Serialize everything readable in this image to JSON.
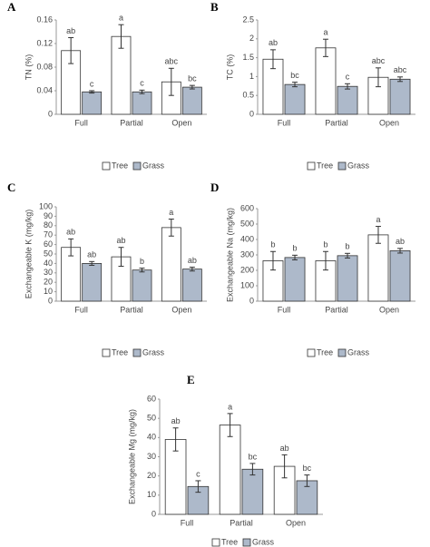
{
  "chart_data": [
    {
      "type": "bar",
      "panel": "A",
      "ylabel": "TN (%)",
      "categories": [
        "Full",
        "Partial",
        "Open"
      ],
      "ylim": [
        0,
        0.16
      ],
      "yticks": [
        0,
        0.04,
        0.08,
        0.12,
        0.16
      ],
      "series": [
        {
          "name": "Tree",
          "color": "#ffffff",
          "values": [
            0.108,
            0.132,
            0.055
          ],
          "errors": [
            0.022,
            0.02,
            0.023
          ],
          "letters": [
            "ab",
            "a",
            "abc"
          ]
        },
        {
          "name": "Grass",
          "color": "#adb9ca",
          "values": [
            0.038,
            0.038,
            0.046
          ],
          "errors": [
            0.002,
            0.003,
            0.003
          ],
          "letters": [
            "c",
            "c",
            "bc"
          ]
        }
      ]
    },
    {
      "type": "bar",
      "panel": "B",
      "ylabel": "TC (%)",
      "categories": [
        "Full",
        "Partial",
        "Open"
      ],
      "ylim": [
        0,
        2.5
      ],
      "yticks": [
        0,
        0.5,
        1,
        1.5,
        2,
        2.5
      ],
      "series": [
        {
          "name": "Tree",
          "color": "#ffffff",
          "values": [
            1.46,
            1.76,
            0.98
          ],
          "errors": [
            0.25,
            0.23,
            0.25
          ],
          "letters": [
            "ab",
            "a",
            "abc"
          ]
        },
        {
          "name": "Grass",
          "color": "#adb9ca",
          "values": [
            0.79,
            0.74,
            0.93
          ],
          "errors": [
            0.06,
            0.07,
            0.06
          ],
          "letters": [
            "bc",
            "c",
            "abc"
          ]
        }
      ]
    },
    {
      "type": "bar",
      "panel": "C",
      "ylabel": "Exchangeable K (mg/kg)",
      "categories": [
        "Full",
        "Partial",
        "Open"
      ],
      "ylim": [
        0,
        100
      ],
      "yticks": [
        0,
        10,
        20,
        30,
        40,
        50,
        60,
        70,
        80,
        90,
        100
      ],
      "series": [
        {
          "name": "Tree",
          "color": "#ffffff",
          "values": [
            57,
            47,
            78
          ],
          "errors": [
            9,
            10,
            9
          ],
          "letters": [
            "ab",
            "ab",
            "a"
          ]
        },
        {
          "name": "Grass",
          "color": "#adb9ca",
          "values": [
            40,
            33,
            34
          ],
          "errors": [
            2,
            2,
            2
          ],
          "letters": [
            "ab",
            "b",
            "ab"
          ]
        }
      ]
    },
    {
      "type": "bar",
      "panel": "D",
      "ylabel": "Exchangeable Na (mg/kg)",
      "categories": [
        "Full",
        "Partial",
        "Open"
      ],
      "ylim": [
        0,
        600
      ],
      "yticks": [
        0,
        100,
        200,
        300,
        400,
        500,
        600
      ],
      "series": [
        {
          "name": "Tree",
          "color": "#ffffff",
          "values": [
            262,
            262,
            430
          ],
          "errors": [
            60,
            60,
            55
          ],
          "letters": [
            "b",
            "b",
            "a"
          ]
        },
        {
          "name": "Grass",
          "color": "#adb9ca",
          "values": [
            283,
            295,
            327
          ],
          "errors": [
            15,
            15,
            15
          ],
          "letters": [
            "b",
            "b",
            "ab"
          ]
        }
      ]
    },
    {
      "type": "bar",
      "panel": "E",
      "ylabel": "Exchangeable Mg (mg/kg)",
      "categories": [
        "Full",
        "Partial",
        "Open"
      ],
      "ylim": [
        0,
        60
      ],
      "yticks": [
        0,
        10,
        20,
        30,
        40,
        50,
        60
      ],
      "series": [
        {
          "name": "Tree",
          "color": "#ffffff",
          "values": [
            39,
            46.5,
            25
          ],
          "errors": [
            6,
            6,
            6
          ],
          "letters": [
            "ab",
            "a",
            "ab"
          ]
        },
        {
          "name": "Grass",
          "color": "#adb9ca",
          "values": [
            14.5,
            23.5,
            17.5
          ],
          "errors": [
            3,
            3,
            3
          ],
          "letters": [
            "c",
            "bc",
            "bc"
          ]
        }
      ]
    }
  ]
}
